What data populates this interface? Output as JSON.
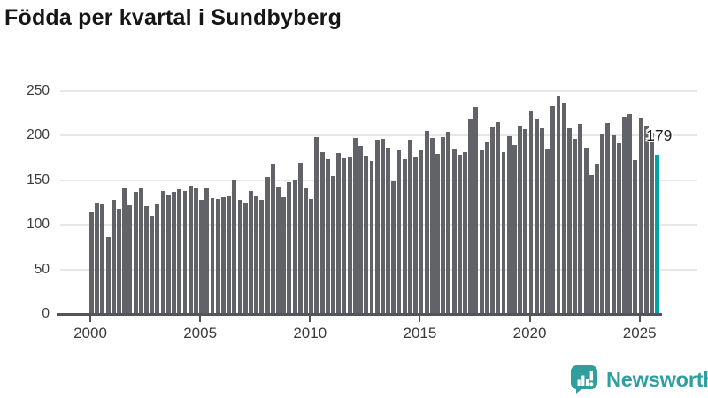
{
  "title": "Födda per kvartal i Sundbyberg",
  "chart_data": {
    "type": "bar",
    "title": "Födda per kvartal i Sundbyberg",
    "x_unit": "quarter",
    "start_year": 2000,
    "end_year": 2025,
    "values": [
      114,
      124,
      123,
      86,
      128,
      118,
      142,
      122,
      137,
      142,
      121,
      110,
      123,
      138,
      133,
      137,
      140,
      138,
      144,
      142,
      128,
      141,
      130,
      129,
      131,
      132,
      150,
      128,
      124,
      138,
      132,
      128,
      154,
      169,
      143,
      131,
      148,
      150,
      170,
      141,
      129,
      198,
      182,
      174,
      155,
      181,
      175,
      176,
      197,
      188,
      178,
      172,
      195,
      196,
      187,
      149,
      184,
      174,
      195,
      177,
      184,
      205,
      197,
      180,
      198,
      204,
      185,
      179,
      182,
      218,
      232,
      184,
      192,
      209,
      215,
      182,
      199,
      189,
      211,
      207,
      227,
      218,
      208,
      186,
      233,
      245,
      237,
      208,
      196,
      213,
      187,
      156,
      169,
      201,
      214,
      200,
      191,
      221,
      224,
      173,
      220,
      211,
      203,
      179
    ],
    "highlight": {
      "index": 103,
      "value": 179,
      "label": "179",
      "color": "#00a2a3"
    },
    "bar_color": "#626269",
    "ylim": [
      0,
      250
    ],
    "yticks": [
      0,
      50,
      100,
      150,
      200,
      250
    ],
    "x_tick_labels": [
      "2000",
      "2005",
      "2010",
      "2015",
      "2020",
      "2025"
    ],
    "x_tick_every_quarters": 20,
    "grid": "horizontal",
    "legend": "none"
  },
  "logo": {
    "name": "Newsworthy",
    "icon": "bar-chart-speech-bubble-icon",
    "color": "#2f9e9f"
  }
}
